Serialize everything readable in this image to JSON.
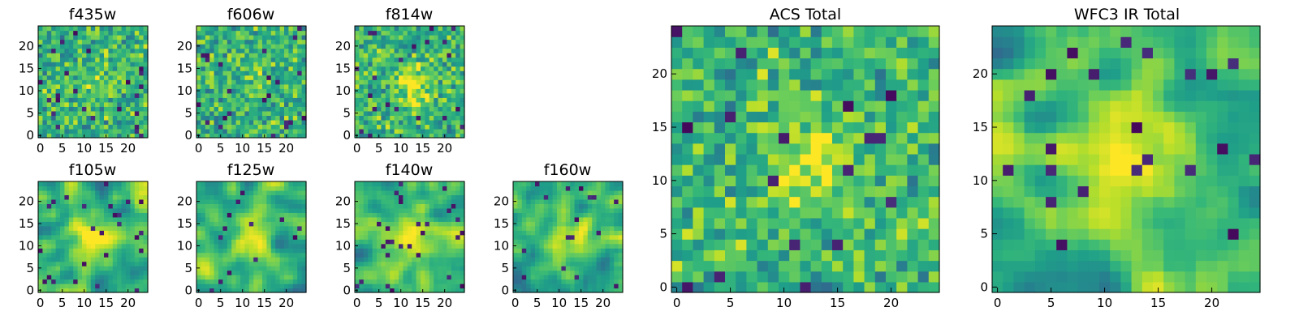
{
  "chart_data": [
    {
      "type": "heatmap",
      "title": "f435w",
      "xticks": [
        "0",
        "5",
        "10",
        "15",
        "20"
      ],
      "yticks": [
        "0",
        "5",
        "10",
        "15",
        "20"
      ],
      "xlim": [
        0,
        25
      ],
      "ylim": [
        0,
        25
      ],
      "grid": false,
      "colormap": "viridis",
      "texture": "noise",
      "seed": 11,
      "blob_strength": 0.08
    },
    {
      "type": "heatmap",
      "title": "f606w",
      "xticks": [
        "0",
        "5",
        "10",
        "15",
        "20"
      ],
      "yticks": [
        "0",
        "5",
        "10",
        "15",
        "20"
      ],
      "xlim": [
        0,
        25
      ],
      "ylim": [
        0,
        25
      ],
      "grid": false,
      "colormap": "viridis",
      "texture": "noise",
      "seed": 23,
      "blob_strength": 0.05
    },
    {
      "type": "heatmap",
      "title": "f814w",
      "xticks": [
        "0",
        "5",
        "10",
        "15",
        "20"
      ],
      "yticks": [
        "0",
        "5",
        "10",
        "15",
        "20"
      ],
      "xlim": [
        0,
        25
      ],
      "ylim": [
        0,
        25
      ],
      "grid": false,
      "colormap": "viridis",
      "texture": "noise",
      "seed": 37,
      "blob_strength": 0.35
    },
    {
      "type": "heatmap",
      "title": "f105w",
      "xticks": [
        "0",
        "5",
        "10",
        "15",
        "20"
      ],
      "yticks": [
        "0",
        "5",
        "10",
        "15",
        "20"
      ],
      "xlim": [
        0,
        25
      ],
      "ylim": [
        0,
        25
      ],
      "grid": false,
      "colormap": "viridis",
      "texture": "smooth",
      "seed": 41,
      "blob_strength": 0.3
    },
    {
      "type": "heatmap",
      "title": "f125w",
      "xticks": [
        "0",
        "5",
        "10",
        "15",
        "20"
      ],
      "yticks": [
        "0",
        "5",
        "10",
        "15",
        "20"
      ],
      "xlim": [
        0,
        25
      ],
      "ylim": [
        0,
        25
      ],
      "grid": false,
      "colormap": "viridis",
      "texture": "smooth",
      "seed": 53,
      "blob_strength": 0.3
    },
    {
      "type": "heatmap",
      "title": "f140w",
      "xticks": [
        "0",
        "5",
        "10",
        "15",
        "20"
      ],
      "yticks": [
        "0",
        "5",
        "10",
        "15",
        "20"
      ],
      "xlim": [
        0,
        25
      ],
      "ylim": [
        0,
        25
      ],
      "grid": false,
      "colormap": "viridis",
      "texture": "smooth",
      "seed": 67,
      "blob_strength": 0.3
    },
    {
      "type": "heatmap",
      "title": "f160w",
      "xticks": [
        "0",
        "5",
        "10",
        "15",
        "20"
      ],
      "yticks": [
        "0",
        "5",
        "10",
        "15",
        "20"
      ],
      "xlim": [
        0,
        25
      ],
      "ylim": [
        0,
        25
      ],
      "grid": false,
      "colormap": "viridis",
      "texture": "smooth",
      "seed": 79,
      "blob_strength": 0.35
    },
    {
      "type": "heatmap",
      "title": "ACS Total",
      "xticks": [
        "0",
        "5",
        "10",
        "15",
        "20"
      ],
      "yticks": [
        "0",
        "5",
        "10",
        "15",
        "20"
      ],
      "xlim": [
        0,
        25
      ],
      "ylim": [
        0,
        25
      ],
      "grid": false,
      "colormap": "viridis",
      "texture": "noise",
      "seed": 97,
      "blob_strength": 0.3
    },
    {
      "type": "heatmap",
      "title": "WFC3 IR Total",
      "xticks": [
        "0",
        "5",
        "10",
        "15",
        "20"
      ],
      "yticks": [
        "0",
        "5",
        "10",
        "15",
        "20"
      ],
      "xlim": [
        0,
        25
      ],
      "ylim": [
        0,
        25
      ],
      "grid": false,
      "colormap": "viridis",
      "texture": "smooth",
      "seed": 113,
      "blob_strength": 0.45
    }
  ]
}
